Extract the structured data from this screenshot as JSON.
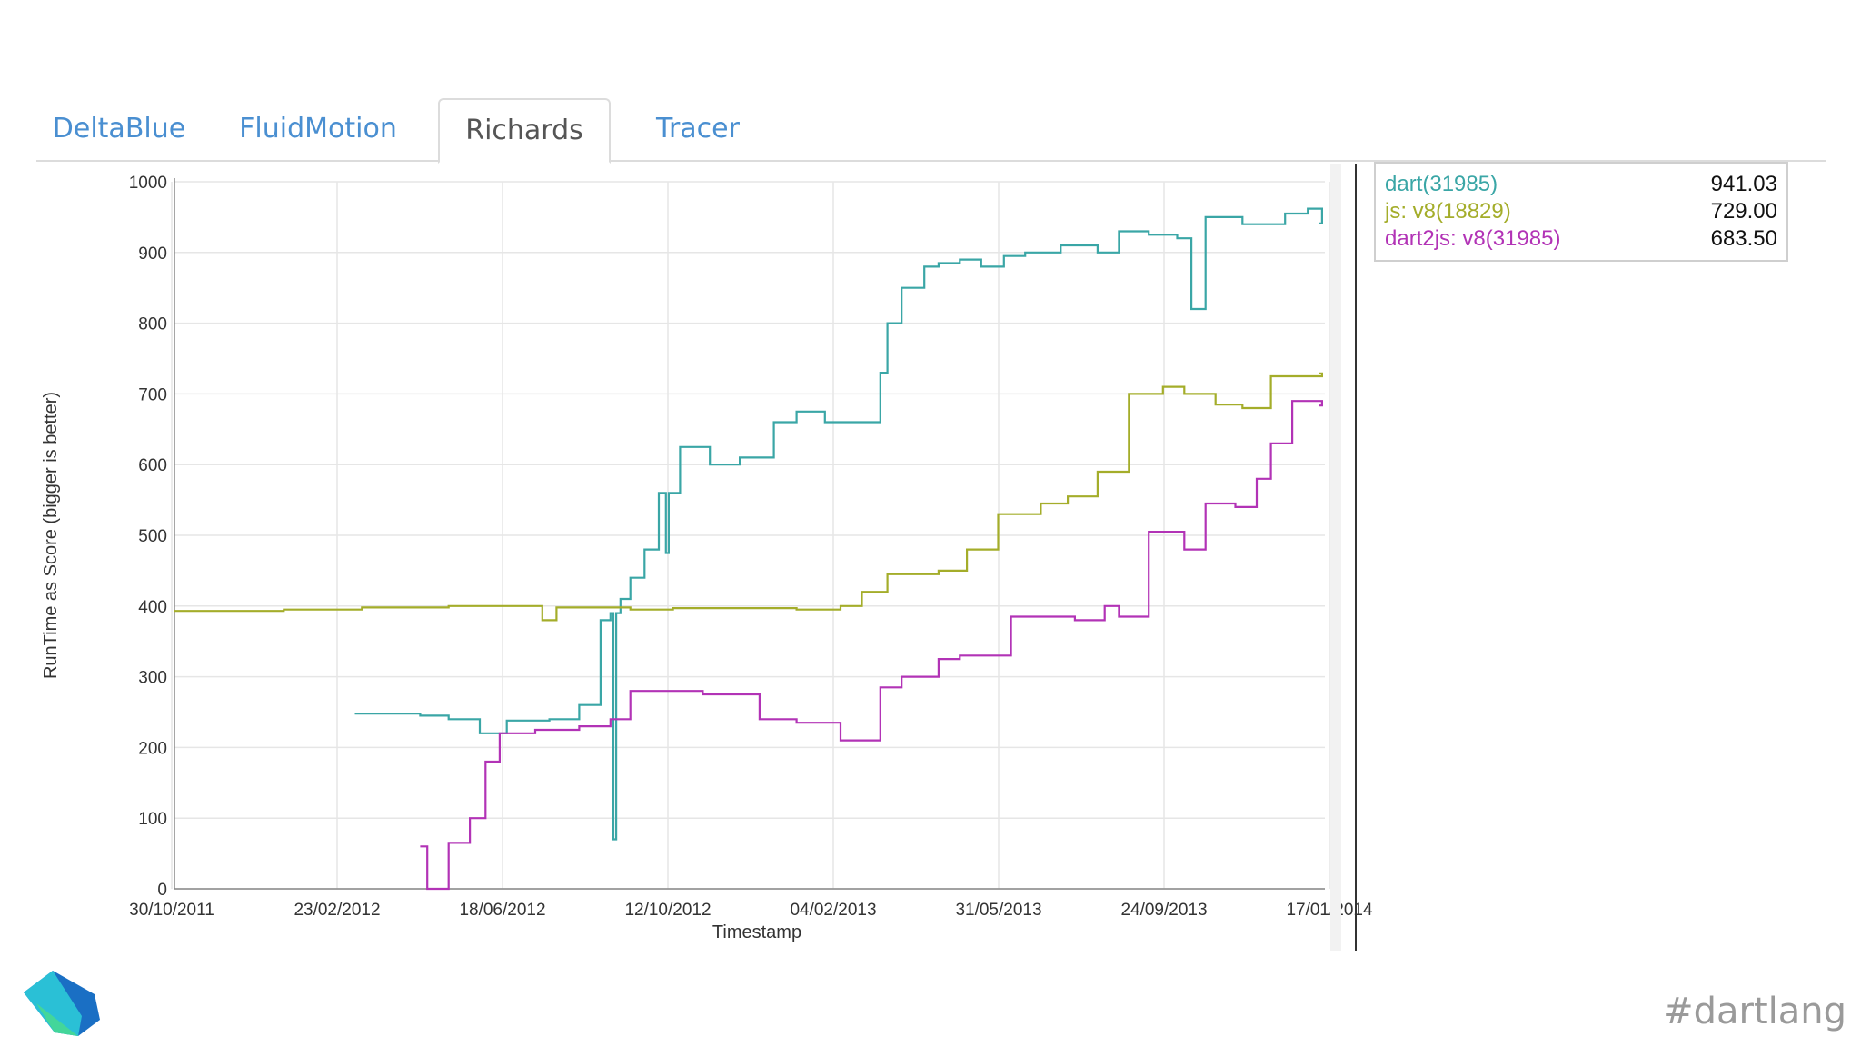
{
  "tabs": [
    {
      "label": "DeltaBlue",
      "active": false
    },
    {
      "label": "FluidMotion",
      "active": false
    },
    {
      "label": "Richards",
      "active": true
    },
    {
      "label": "Tracer",
      "active": false
    }
  ],
  "legend": [
    {
      "name": "dart(31985)",
      "value": "941.03",
      "color": "#3aa6a6"
    },
    {
      "name": "js: v8(18829)",
      "value": "729.00",
      "color": "#a4ad2a"
    },
    {
      "name": "dart2js: v8(31985)",
      "value": "683.50",
      "color": "#b233b6"
    }
  ],
  "footer": {
    "hashtag": "#dartlang"
  },
  "chart_data": {
    "type": "line",
    "title": "",
    "xlabel": "Timestamp",
    "ylabel": "RunTime as Score (bigger is better)",
    "ylim": [
      0,
      1000
    ],
    "yticks": [
      0,
      100,
      200,
      300,
      400,
      500,
      600,
      700,
      800,
      900,
      1000
    ],
    "xticks": [
      "30/10/2011",
      "23/02/2012",
      "18/06/2012",
      "12/10/2012",
      "04/02/2013",
      "31/05/2013",
      "24/09/2013",
      "17/01/2014"
    ],
    "xlim": [
      "2011-10-30",
      "2014-01-17"
    ],
    "grid": true,
    "legend_position": "right",
    "series": [
      {
        "name": "dart(31985)",
        "color": "#3aa6a6",
        "x": [
          "2012-03-05",
          "2012-04-20",
          "2012-05-10",
          "2012-06-01",
          "2012-06-20",
          "2012-07-20",
          "2012-08-10",
          "2012-08-25",
          "2012-09-01",
          "2012-09-03",
          "2012-09-05",
          "2012-09-08",
          "2012-09-15",
          "2012-09-25",
          "2012-10-05",
          "2012-10-10",
          "2012-10-12",
          "2012-10-20",
          "2012-11-10",
          "2012-12-01",
          "2012-12-25",
          "2013-01-10",
          "2013-01-30",
          "2013-02-20",
          "2013-03-10",
          "2013-03-15",
          "2013-03-25",
          "2013-04-10",
          "2013-04-20",
          "2013-05-05",
          "2013-05-20",
          "2013-06-05",
          "2013-06-20",
          "2013-07-15",
          "2013-08-10",
          "2013-08-25",
          "2013-09-15",
          "2013-10-05",
          "2013-10-15",
          "2013-10-25",
          "2013-11-20",
          "2013-12-20",
          "2014-01-05",
          "2014-01-15"
        ],
        "y": [
          248,
          245,
          240,
          220,
          238,
          240,
          260,
          380,
          390,
          70,
          390,
          410,
          440,
          480,
          560,
          475,
          560,
          625,
          600,
          610,
          660,
          675,
          660,
          660,
          730,
          800,
          850,
          880,
          885,
          890,
          880,
          895,
          900,
          910,
          900,
          930,
          925,
          920,
          820,
          950,
          940,
          955,
          962,
          941
        ]
      },
      {
        "name": "js: v8(18829)",
        "color": "#a4ad2a",
        "x": [
          "2011-10-30",
          "2012-01-15",
          "2012-03-10",
          "2012-05-10",
          "2012-07-10",
          "2012-07-15",
          "2012-07-25",
          "2012-09-15",
          "2012-10-15",
          "2013-01-10",
          "2013-02-10",
          "2013-02-25",
          "2013-03-15",
          "2013-04-10",
          "2013-04-20",
          "2013-05-10",
          "2013-06-01",
          "2013-07-01",
          "2013-07-20",
          "2013-08-10",
          "2013-09-01",
          "2013-09-25",
          "2013-10-10",
          "2013-11-01",
          "2013-11-20",
          "2013-12-10",
          "2014-01-15"
        ],
        "y": [
          393,
          395,
          398,
          400,
          400,
          380,
          398,
          395,
          397,
          395,
          400,
          420,
          445,
          445,
          450,
          480,
          530,
          545,
          555,
          590,
          700,
          710,
          700,
          685,
          680,
          725,
          729
        ]
      },
      {
        "name": "dart2js: v8(31985)",
        "color": "#b233b6",
        "x": [
          "2012-04-20",
          "2012-04-25",
          "2012-05-10",
          "2012-05-25",
          "2012-06-05",
          "2012-06-15",
          "2012-07-10",
          "2012-08-10",
          "2012-09-01",
          "2012-09-15",
          "2012-11-05",
          "2012-12-15",
          "2013-01-10",
          "2013-02-10",
          "2013-02-25",
          "2013-03-10",
          "2013-03-25",
          "2013-04-20",
          "2013-05-05",
          "2013-06-10",
          "2013-07-10",
          "2013-07-25",
          "2013-08-15",
          "2013-08-25",
          "2013-09-15",
          "2013-10-10",
          "2013-10-25",
          "2013-11-15",
          "2013-11-30",
          "2013-12-10",
          "2013-12-25",
          "2014-01-15"
        ],
        "y": [
          60,
          0,
          65,
          100,
          180,
          220,
          225,
          230,
          240,
          280,
          275,
          240,
          235,
          210,
          210,
          285,
          300,
          325,
          330,
          385,
          385,
          380,
          400,
          385,
          505,
          480,
          545,
          540,
          580,
          630,
          690,
          683.5
        ]
      }
    ]
  }
}
